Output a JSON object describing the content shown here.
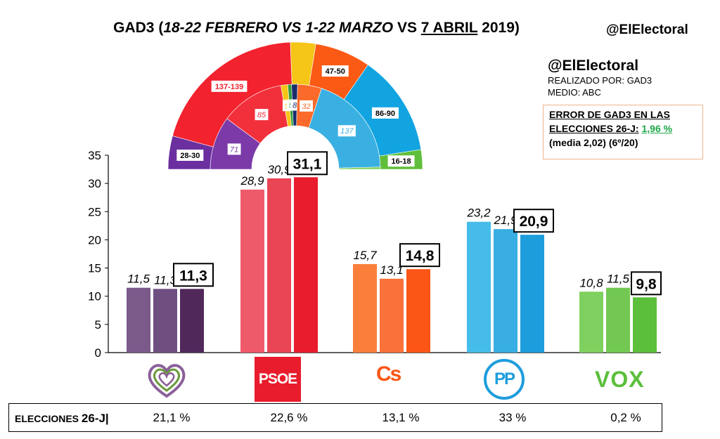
{
  "title": {
    "pollster": "GAD3",
    "open": "(",
    "period_1": "18-22 FEBRERO VS 1-22 MARZO",
    "vs": "VS",
    "election_date": "7 ABRIL",
    "year": "2019)"
  },
  "brand_top": "@ElElectoral",
  "info": {
    "brand": "@ElElectoral",
    "realizado": "REALIZADO POR: GAD3",
    "medio": "MEDIO: ABC",
    "error_line1": "ERROR DE GAD3 EN LAS",
    "error_line2": "ELECCIONES 26-J:",
    "error_value": "1,96 %",
    "error_line3": "(media 2,02) (6º/20)"
  },
  "colors": {
    "podemos": [
      "#7b5a8a",
      "#6e4f80",
      "#51285a"
    ],
    "psoe": [
      "#ef5a6a",
      "#ea4555",
      "#e81c2c"
    ],
    "cs": [
      "#fa7f3a",
      "#f9723a",
      "#fb5616"
    ],
    "pp": [
      "#45bde8",
      "#38aee2",
      "#1e9ddc"
    ],
    "vox": [
      "#7fd05e",
      "#72c852",
      "#5bbf3c"
    ],
    "error_green": "#1fa84a"
  },
  "logos": {
    "podemos": "heart-logo",
    "psoe": "PSOE",
    "cs": "Cs",
    "pp": "PP",
    "vox": "VOX"
  },
  "chart_data": {
    "type": "bar",
    "categories": [
      "Unidas Podemos",
      "PSOE",
      "Cs",
      "PP",
      "VOX"
    ],
    "series": [
      {
        "values": [
          11.5,
          28.9,
          15.7,
          23.2,
          10.8
        ]
      },
      {
        "values": [
          11.3,
          30.9,
          13.1,
          21.9,
          11.5
        ]
      },
      {
        "values": [
          11.3,
          31.1,
          14.8,
          20.9,
          9.8
        ]
      }
    ],
    "value_labels": [
      [
        "11,5",
        "28,9",
        "15,7",
        "23,2",
        "10,8"
      ],
      [
        "11,3",
        "30,9",
        "13,1",
        "21,9",
        "11,5"
      ],
      [
        "11,3",
        "31,1",
        "14,8",
        "20,9",
        "9,8"
      ]
    ],
    "yticks": [
      "0",
      "5",
      "10",
      "15",
      "20",
      "25",
      "30",
      "35"
    ],
    "ylim": [
      0,
      35
    ],
    "grid": false,
    "legend": "none",
    "results_label": "ELECCIONES",
    "results_label_bold": "26-J|",
    "results_26j": [
      "21,1 %",
      "22,6  %",
      "13,1 %",
      "33 %",
      "0,2 %"
    ]
  },
  "seats_chart": {
    "type": "pie",
    "note": "hemicycle",
    "total": 350,
    "outer_ring": [
      {
        "party": "Unidas Podemos",
        "label": "28-30",
        "value": 29,
        "color": "#6b2fa0"
      },
      {
        "party": "PSOE",
        "label": "137-139",
        "value": 138,
        "color": "#f2222e"
      },
      {
        "party": "Others",
        "label": "",
        "value": 22,
        "color": "#f5c518"
      },
      {
        "party": "Cs",
        "label": "47-50",
        "value": 48.5,
        "color": "#fb5a14"
      },
      {
        "party": "PP",
        "label": "86-90",
        "value": 88,
        "color": "#12a4e0"
      },
      {
        "party": "VOX",
        "label": "16-18",
        "value": 17,
        "color": "#5fbf3a"
      }
    ],
    "inner_ring": [
      {
        "party": "Unidas Podemos",
        "label": "71",
        "value": 71,
        "color": "#7b3aa8"
      },
      {
        "party": "PSOE",
        "label": "85",
        "value": 85,
        "color": "#f2303c"
      },
      {
        "party": "Others A",
        "label": "9",
        "value": 9,
        "color": "#f5c518"
      },
      {
        "party": "Others B",
        "label": "5",
        "value": 5,
        "color": "#2f9e3c"
      },
      {
        "party": "Others C",
        "label": "8",
        "value": 8,
        "color": "#1a2c6a"
      },
      {
        "party": "Cs",
        "label": "32",
        "value": 32,
        "color": "#fb6a2a"
      },
      {
        "party": "PP",
        "label": "137",
        "value": 137,
        "color": "#3ab0e2"
      },
      {
        "party": "Extra",
        "label": "",
        "value": 3,
        "color": "#7fd05e"
      }
    ]
  }
}
